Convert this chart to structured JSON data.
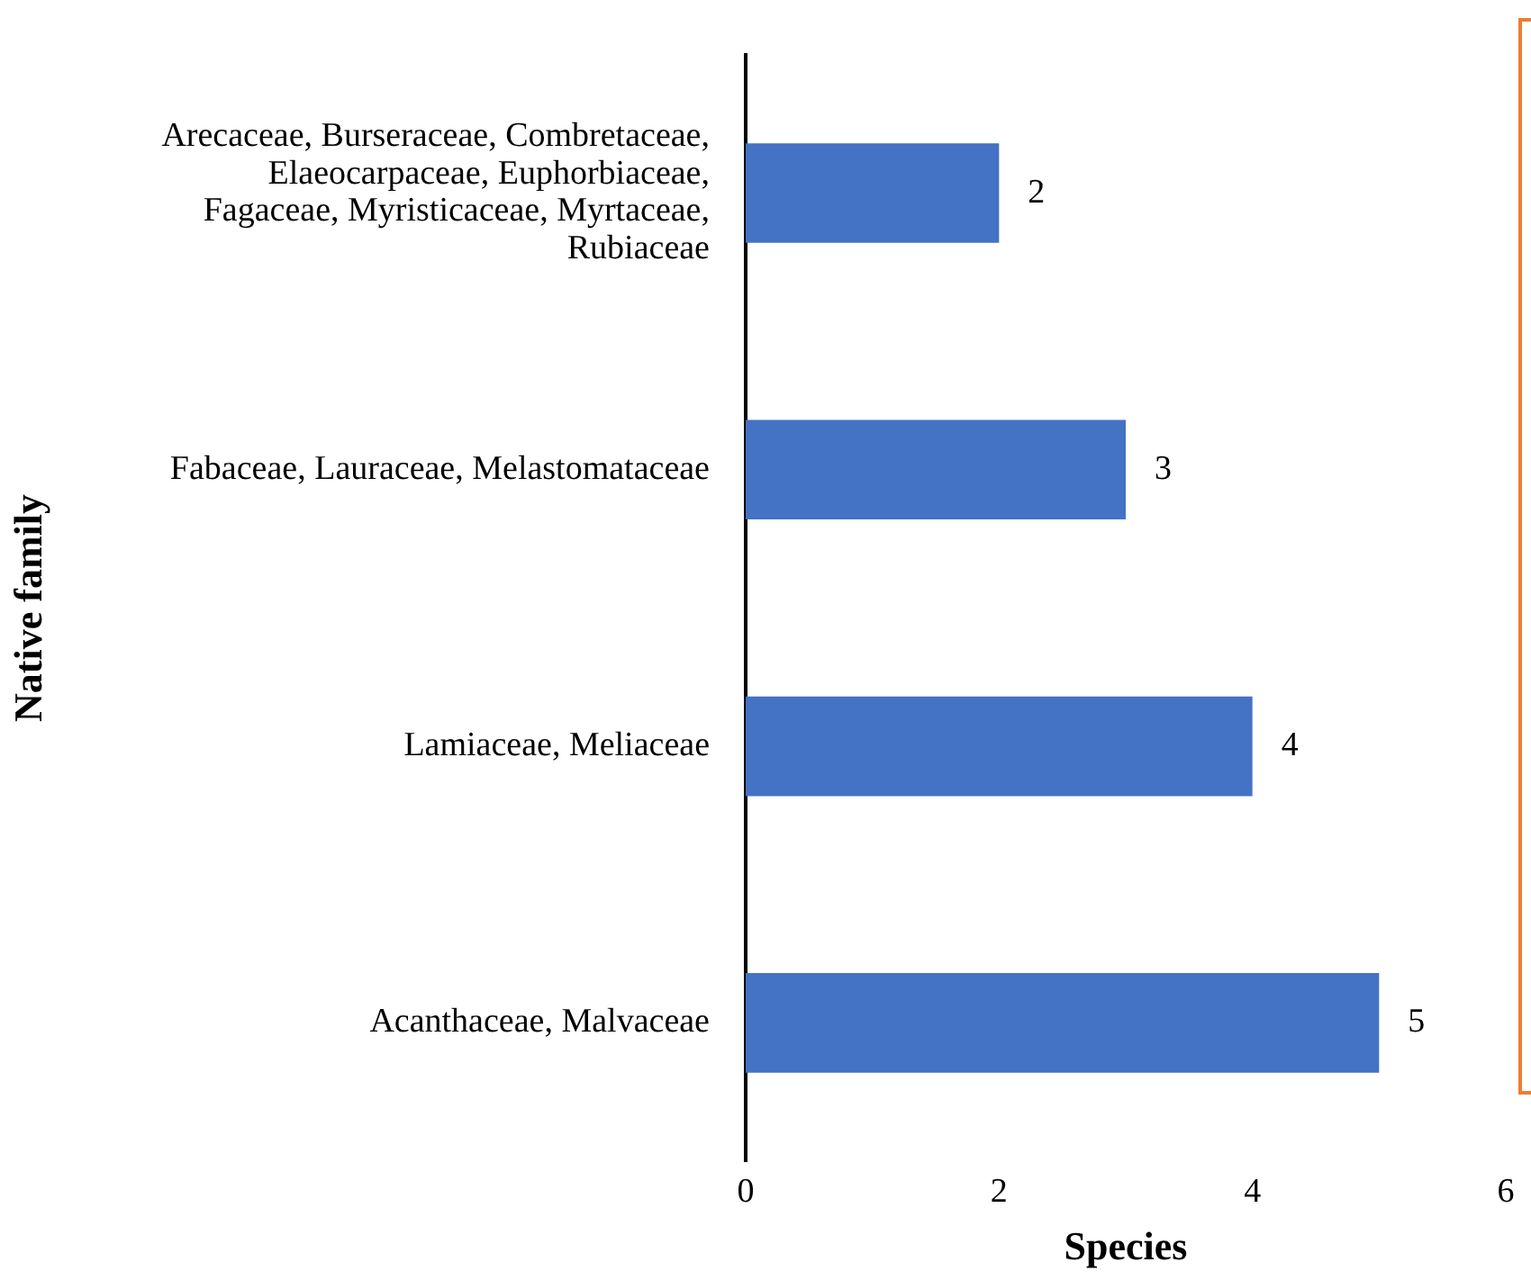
{
  "chart_data": {
    "type": "bar",
    "orientation": "horizontal",
    "xlabel": "Species",
    "ylabel": "Native family",
    "categories": [
      "Arecaceae, Burseraceae, Combretaceae, Elaeocarpaceae, Euphorbiaceae, Fagaceae, Myristicaceae, Myrtaceae, Rubiaceae",
      "Fabaceae, Lauraceae, Melastomataceae",
      "Lamiaceae, Meliaceae",
      "Acanthaceae, Malvaceae"
    ],
    "values": [
      2,
      3,
      4,
      5
    ],
    "color": "#4472c4",
    "xlim": [
      0,
      6
    ],
    "xticks": [
      0,
      2,
      4,
      6
    ],
    "data_labels": true,
    "grid": false,
    "legend": false
  }
}
